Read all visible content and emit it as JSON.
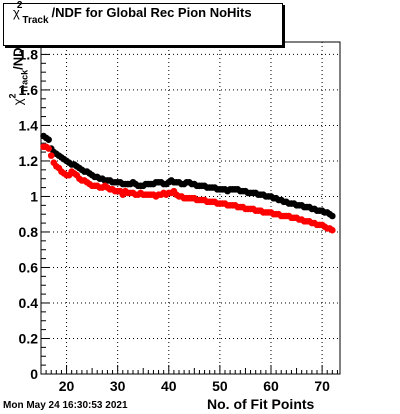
{
  "chart_data": {
    "type": "scatter",
    "title_parts": {
      "chi": "χ",
      "sup": "2",
      "sub": "Track",
      "rest": "/NDF for Global Rec Pion NoHits"
    },
    "xlabel": "No. of Fit Points",
    "ylabel_parts": {
      "chi": "χ",
      "sup": "2",
      "sub": "Track",
      "rest": "/ND"
    },
    "xlim": [
      15,
      73.5
    ],
    "ylim": [
      0,
      1.87
    ],
    "x_ticks": [
      20,
      30,
      40,
      50,
      60,
      70
    ],
    "y_ticks": [
      "0",
      "0.2",
      "0.4",
      "0.6",
      "0.8",
      "1",
      "1.2",
      "1.4",
      "1.6",
      "1.8"
    ],
    "grid": true,
    "series": [
      {
        "color": "#000000",
        "points": [
          [
            15.5,
            1.34
          ],
          [
            16,
            1.33
          ],
          [
            16.5,
            1.32
          ],
          [
            17,
            1.27
          ],
          [
            17.5,
            1.25
          ],
          [
            18,
            1.24
          ],
          [
            18.5,
            1.23
          ],
          [
            19,
            1.22
          ],
          [
            19.5,
            1.21
          ],
          [
            20,
            1.2
          ],
          [
            20.5,
            1.19
          ],
          [
            21,
            1.18
          ],
          [
            21.5,
            1.18
          ],
          [
            22,
            1.17
          ],
          [
            22.5,
            1.16
          ],
          [
            23,
            1.15
          ],
          [
            23.5,
            1.14
          ],
          [
            24,
            1.14
          ],
          [
            24.5,
            1.13
          ],
          [
            25,
            1.12
          ],
          [
            25.5,
            1.11
          ],
          [
            26,
            1.11
          ],
          [
            26.5,
            1.1
          ],
          [
            27,
            1.1
          ],
          [
            27.5,
            1.09
          ],
          [
            28,
            1.09
          ],
          [
            28.5,
            1.09
          ],
          [
            29,
            1.08
          ],
          [
            29.5,
            1.08
          ],
          [
            30,
            1.08
          ],
          [
            30.5,
            1.08
          ],
          [
            31,
            1.07
          ],
          [
            31.5,
            1.07
          ],
          [
            32,
            1.07
          ],
          [
            32.5,
            1.07
          ],
          [
            33,
            1.08
          ],
          [
            33.5,
            1.07
          ],
          [
            34,
            1.06
          ],
          [
            34.5,
            1.06
          ],
          [
            35,
            1.06
          ],
          [
            35.5,
            1.07
          ],
          [
            36,
            1.07
          ],
          [
            36.5,
            1.07
          ],
          [
            37,
            1.07
          ],
          [
            37.5,
            1.08
          ],
          [
            38,
            1.08
          ],
          [
            38.5,
            1.08
          ],
          [
            39,
            1.07
          ],
          [
            39.5,
            1.07
          ],
          [
            40,
            1.08
          ],
          [
            40.5,
            1.09
          ],
          [
            41,
            1.08
          ],
          [
            41.5,
            1.08
          ],
          [
            42,
            1.08
          ],
          [
            42.5,
            1.07
          ],
          [
            43,
            1.07
          ],
          [
            43.5,
            1.08
          ],
          [
            44,
            1.08
          ],
          [
            44.5,
            1.07
          ],
          [
            45,
            1.07
          ],
          [
            45.5,
            1.06
          ],
          [
            46,
            1.06
          ],
          [
            46.5,
            1.06
          ],
          [
            47,
            1.06
          ],
          [
            47.5,
            1.05
          ],
          [
            48,
            1.05
          ],
          [
            48.5,
            1.05
          ],
          [
            49,
            1.05
          ],
          [
            49.5,
            1.04
          ],
          [
            50,
            1.04
          ],
          [
            50.5,
            1.04
          ],
          [
            51,
            1.04
          ],
          [
            51.5,
            1.03
          ],
          [
            52,
            1.04
          ],
          [
            52.5,
            1.04
          ],
          [
            53,
            1.04
          ],
          [
            53.5,
            1.04
          ],
          [
            54,
            1.03
          ],
          [
            54.5,
            1.03
          ],
          [
            55,
            1.03
          ],
          [
            55.5,
            1.02
          ],
          [
            56,
            1.02
          ],
          [
            56.5,
            1.02
          ],
          [
            57,
            1.02
          ],
          [
            57.5,
            1.01
          ],
          [
            58,
            1.01
          ],
          [
            58.5,
            1.01
          ],
          [
            59,
            1.0
          ],
          [
            59.5,
            1.0
          ],
          [
            60,
            1.0
          ],
          [
            60.5,
            0.99
          ],
          [
            61,
            0.99
          ],
          [
            61.5,
            0.98
          ],
          [
            62,
            0.98
          ],
          [
            62.5,
            0.97
          ],
          [
            63,
            0.97
          ],
          [
            63.5,
            0.96
          ],
          [
            64,
            0.96
          ],
          [
            64.5,
            0.96
          ],
          [
            65,
            0.95
          ],
          [
            65.5,
            0.95
          ],
          [
            66,
            0.95
          ],
          [
            66.5,
            0.94
          ],
          [
            67,
            0.94
          ],
          [
            67.5,
            0.94
          ],
          [
            68,
            0.93
          ],
          [
            68.5,
            0.93
          ],
          [
            69,
            0.92
          ],
          [
            69.5,
            0.92
          ],
          [
            70,
            0.92
          ],
          [
            70.5,
            0.91
          ],
          [
            71,
            0.91
          ],
          [
            71.5,
            0.9
          ],
          [
            72,
            0.89
          ]
        ]
      },
      {
        "color": "#ff0000",
        "points": [
          [
            15.5,
            1.28
          ],
          [
            16,
            1.28
          ],
          [
            16.5,
            1.27
          ],
          [
            17,
            1.23
          ],
          [
            17.5,
            1.19
          ],
          [
            18,
            1.17
          ],
          [
            18.5,
            1.16
          ],
          [
            19,
            1.14
          ],
          [
            19.5,
            1.13
          ],
          [
            20,
            1.12
          ],
          [
            20.5,
            1.12
          ],
          [
            21,
            1.14
          ],
          [
            21.5,
            1.13
          ],
          [
            22,
            1.12
          ],
          [
            22.5,
            1.1
          ],
          [
            23,
            1.09
          ],
          [
            23.5,
            1.09
          ],
          [
            24,
            1.08
          ],
          [
            24.5,
            1.07
          ],
          [
            25,
            1.06
          ],
          [
            25.5,
            1.06
          ],
          [
            26,
            1.06
          ],
          [
            26.5,
            1.05
          ],
          [
            27,
            1.05
          ],
          [
            27.5,
            1.06
          ],
          [
            28,
            1.05
          ],
          [
            28.5,
            1.04
          ],
          [
            29,
            1.04
          ],
          [
            29.5,
            1.03
          ],
          [
            30,
            1.03
          ],
          [
            30.5,
            1.03
          ],
          [
            31,
            1.01
          ],
          [
            31.5,
            1.03
          ],
          [
            32,
            1.02
          ],
          [
            32.5,
            1.02
          ],
          [
            33,
            1.02
          ],
          [
            33.5,
            1.01
          ],
          [
            34,
            1.01
          ],
          [
            34.5,
            1.02
          ],
          [
            35,
            1.01
          ],
          [
            35.5,
            1.01
          ],
          [
            36,
            1.01
          ],
          [
            36.5,
            1.01
          ],
          [
            37,
            1.01
          ],
          [
            37.5,
            1.0
          ],
          [
            38,
            1.01
          ],
          [
            38.5,
            1.01
          ],
          [
            39,
            1.02
          ],
          [
            39.5,
            1.01
          ],
          [
            40,
            1.02
          ],
          [
            40.5,
            1.02
          ],
          [
            41,
            1.03
          ],
          [
            41.5,
            1.01
          ],
          [
            42,
            1.0
          ],
          [
            42.5,
            1.0
          ],
          [
            43,
            0.99
          ],
          [
            43.5,
            0.99
          ],
          [
            44,
            0.99
          ],
          [
            44.5,
            0.99
          ],
          [
            45,
            0.99
          ],
          [
            45.5,
            0.98
          ],
          [
            46,
            0.98
          ],
          [
            46.5,
            0.98
          ],
          [
            47,
            0.98
          ],
          [
            47.5,
            0.97
          ],
          [
            48,
            0.97
          ],
          [
            48.5,
            0.97
          ],
          [
            49,
            0.97
          ],
          [
            49.5,
            0.96
          ],
          [
            50,
            0.96
          ],
          [
            50.5,
            0.96
          ],
          [
            51,
            0.96
          ],
          [
            51.5,
            0.95
          ],
          [
            52,
            0.95
          ],
          [
            52.5,
            0.95
          ],
          [
            53,
            0.95
          ],
          [
            53.5,
            0.94
          ],
          [
            54,
            0.94
          ],
          [
            54.5,
            0.94
          ],
          [
            55,
            0.93
          ],
          [
            55.5,
            0.93
          ],
          [
            56,
            0.93
          ],
          [
            56.5,
            0.93
          ],
          [
            57,
            0.92
          ],
          [
            57.5,
            0.92
          ],
          [
            58,
            0.92
          ],
          [
            58.5,
            0.91
          ],
          [
            59,
            0.91
          ],
          [
            59.5,
            0.91
          ],
          [
            60,
            0.91
          ],
          [
            60.5,
            0.9
          ],
          [
            61,
            0.9
          ],
          [
            61.5,
            0.9
          ],
          [
            62,
            0.89
          ],
          [
            62.5,
            0.89
          ],
          [
            63,
            0.89
          ],
          [
            63.5,
            0.89
          ],
          [
            64,
            0.88
          ],
          [
            64.5,
            0.88
          ],
          [
            65,
            0.88
          ],
          [
            65.5,
            0.87
          ],
          [
            66,
            0.87
          ],
          [
            66.5,
            0.86
          ],
          [
            67,
            0.86
          ],
          [
            67.5,
            0.86
          ],
          [
            68,
            0.85
          ],
          [
            68.5,
            0.85
          ],
          [
            69,
            0.84
          ],
          [
            69.5,
            0.84
          ],
          [
            70,
            0.84
          ],
          [
            70.5,
            0.83
          ],
          [
            71,
            0.82
          ],
          [
            71.5,
            0.82
          ],
          [
            72,
            0.81
          ]
        ]
      }
    ]
  },
  "footer": {
    "date": "Mon May 24 16:30:53 2021"
  }
}
